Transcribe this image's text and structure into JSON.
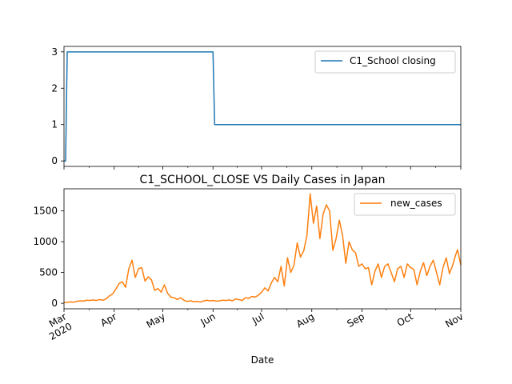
{
  "chart_data": [
    {
      "type": "line",
      "title": "",
      "xlabel": "",
      "ylabel": "",
      "ylim": [
        -0.15,
        3.15
      ],
      "xlim": [
        "2020-03-01",
        "2020-11-01"
      ],
      "yticks": [
        0,
        1,
        2,
        3
      ],
      "legend_position": "upper right",
      "grid": false,
      "series": [
        {
          "name": "C1_School closing",
          "color": "#1f77b4",
          "points": [
            [
              "2020-03-01",
              0
            ],
            [
              "2020-03-02",
              0
            ],
            [
              "2020-03-03",
              3
            ],
            [
              "2020-06-01",
              3
            ],
            [
              "2020-06-02",
              1
            ],
            [
              "2020-11-01",
              1
            ]
          ]
        }
      ]
    },
    {
      "type": "line",
      "title": "C1_SCHOOL_CLOSE VS Daily Cases in Japan",
      "xlabel": "Date",
      "ylabel": "",
      "ylim": [
        -90,
        1860
      ],
      "xlim": [
        "2020-03-01",
        "2020-11-01"
      ],
      "yticks": [
        0,
        500,
        1000,
        1500
      ],
      "xticks": [
        {
          "date": "2020-03-01",
          "label": "Mar",
          "sublabel": "2020"
        },
        {
          "date": "2020-04-01",
          "label": "Apr"
        },
        {
          "date": "2020-05-01",
          "label": "May"
        },
        {
          "date": "2020-06-01",
          "label": "Jun"
        },
        {
          "date": "2020-07-01",
          "label": "Jul"
        },
        {
          "date": "2020-08-01",
          "label": "Aug"
        },
        {
          "date": "2020-09-01",
          "label": "Sep"
        },
        {
          "date": "2020-10-01",
          "label": "Oct"
        },
        {
          "date": "2020-11-01",
          "label": "Nov"
        }
      ],
      "legend_position": "upper right",
      "grid": false,
      "series": [
        {
          "name": "new_cases",
          "color": "#ff7f0e",
          "points": [
            [
              "2020-03-01",
              10
            ],
            [
              "2020-03-03",
              15
            ],
            [
              "2020-03-05",
              22
            ],
            [
              "2020-03-07",
              18
            ],
            [
              "2020-03-09",
              30
            ],
            [
              "2020-03-11",
              40
            ],
            [
              "2020-03-13",
              35
            ],
            [
              "2020-03-15",
              50
            ],
            [
              "2020-03-17",
              45
            ],
            [
              "2020-03-19",
              55
            ],
            [
              "2020-03-21",
              45
            ],
            [
              "2020-03-23",
              60
            ],
            [
              "2020-03-25",
              50
            ],
            [
              "2020-03-27",
              70
            ],
            [
              "2020-03-29",
              120
            ],
            [
              "2020-03-31",
              150
            ],
            [
              "2020-04-02",
              230
            ],
            [
              "2020-04-04",
              320
            ],
            [
              "2020-04-06",
              350
            ],
            [
              "2020-04-08",
              260
            ],
            [
              "2020-04-10",
              560
            ],
            [
              "2020-04-12",
              700
            ],
            [
              "2020-04-14",
              420
            ],
            [
              "2020-04-16",
              560
            ],
            [
              "2020-04-18",
              580
            ],
            [
              "2020-04-20",
              360
            ],
            [
              "2020-04-22",
              430
            ],
            [
              "2020-04-24",
              380
            ],
            [
              "2020-04-26",
              210
            ],
            [
              "2020-04-28",
              240
            ],
            [
              "2020-04-30",
              180
            ],
            [
              "2020-05-02",
              300
            ],
            [
              "2020-05-04",
              160
            ],
            [
              "2020-05-06",
              100
            ],
            [
              "2020-05-08",
              90
            ],
            [
              "2020-05-10",
              60
            ],
            [
              "2020-05-12",
              90
            ],
            [
              "2020-05-14",
              50
            ],
            [
              "2020-05-16",
              30
            ],
            [
              "2020-05-18",
              40
            ],
            [
              "2020-05-20",
              25
            ],
            [
              "2020-05-22",
              30
            ],
            [
              "2020-05-24",
              20
            ],
            [
              "2020-05-26",
              35
            ],
            [
              "2020-05-28",
              50
            ],
            [
              "2020-05-30",
              40
            ],
            [
              "2020-06-01",
              45
            ],
            [
              "2020-06-03",
              35
            ],
            [
              "2020-06-05",
              40
            ],
            [
              "2020-06-07",
              50
            ],
            [
              "2020-06-09",
              45
            ],
            [
              "2020-06-11",
              55
            ],
            [
              "2020-06-13",
              40
            ],
            [
              "2020-06-15",
              70
            ],
            [
              "2020-06-17",
              60
            ],
            [
              "2020-06-19",
              45
            ],
            [
              "2020-06-21",
              90
            ],
            [
              "2020-06-23",
              80
            ],
            [
              "2020-06-25",
              110
            ],
            [
              "2020-06-27",
              100
            ],
            [
              "2020-06-29",
              130
            ],
            [
              "2020-07-01",
              180
            ],
            [
              "2020-07-03",
              250
            ],
            [
              "2020-07-05",
              200
            ],
            [
              "2020-07-07",
              330
            ],
            [
              "2020-07-09",
              420
            ],
            [
              "2020-07-11",
              350
            ],
            [
              "2020-07-13",
              600
            ],
            [
              "2020-07-15",
              280
            ],
            [
              "2020-07-17",
              740
            ],
            [
              "2020-07-19",
              500
            ],
            [
              "2020-07-21",
              620
            ],
            [
              "2020-07-23",
              980
            ],
            [
              "2020-07-25",
              750
            ],
            [
              "2020-07-27",
              850
            ],
            [
              "2020-07-29",
              1100
            ],
            [
              "2020-07-31",
              1780
            ],
            [
              "2020-08-02",
              1300
            ],
            [
              "2020-08-04",
              1580
            ],
            [
              "2020-08-06",
              1050
            ],
            [
              "2020-08-08",
              1450
            ],
            [
              "2020-08-10",
              1600
            ],
            [
              "2020-08-12",
              1500
            ],
            [
              "2020-08-14",
              860
            ],
            [
              "2020-08-16",
              1050
            ],
            [
              "2020-08-18",
              1350
            ],
            [
              "2020-08-20",
              1100
            ],
            [
              "2020-08-22",
              650
            ],
            [
              "2020-08-24",
              1000
            ],
            [
              "2020-08-26",
              870
            ],
            [
              "2020-08-28",
              820
            ],
            [
              "2020-08-30",
              600
            ],
            [
              "2020-09-01",
              640
            ],
            [
              "2020-09-03",
              560
            ],
            [
              "2020-09-05",
              580
            ],
            [
              "2020-09-07",
              300
            ],
            [
              "2020-09-09",
              520
            ],
            [
              "2020-09-11",
              640
            ],
            [
              "2020-09-13",
              420
            ],
            [
              "2020-09-15",
              600
            ],
            [
              "2020-09-17",
              640
            ],
            [
              "2020-09-19",
              500
            ],
            [
              "2020-09-21",
              350
            ],
            [
              "2020-09-23",
              560
            ],
            [
              "2020-09-25",
              600
            ],
            [
              "2020-09-27",
              420
            ],
            [
              "2020-09-29",
              640
            ],
            [
              "2020-10-01",
              580
            ],
            [
              "2020-10-03",
              550
            ],
            [
              "2020-10-05",
              300
            ],
            [
              "2020-10-07",
              520
            ],
            [
              "2020-10-09",
              660
            ],
            [
              "2020-10-11",
              450
            ],
            [
              "2020-10-13",
              600
            ],
            [
              "2020-10-15",
              700
            ],
            [
              "2020-10-17",
              500
            ],
            [
              "2020-10-19",
              300
            ],
            [
              "2020-10-21",
              580
            ],
            [
              "2020-10-23",
              740
            ],
            [
              "2020-10-25",
              480
            ],
            [
              "2020-10-27",
              620
            ],
            [
              "2020-10-29",
              800
            ],
            [
              "2020-10-30",
              870
            ],
            [
              "2020-11-01",
              620
            ]
          ]
        }
      ]
    }
  ]
}
